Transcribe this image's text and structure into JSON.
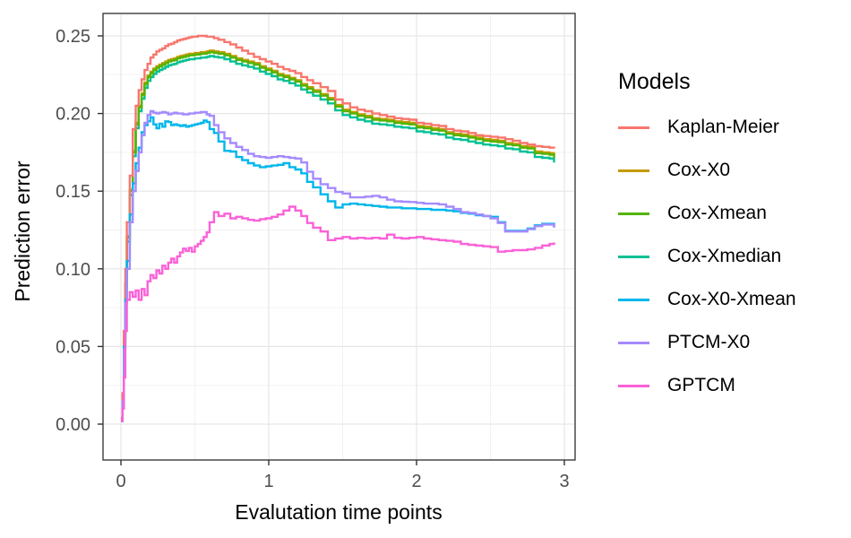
{
  "chart_data": {
    "type": "line",
    "line_style": "step",
    "title": "",
    "xlabel": "Evalutation time points",
    "ylabel": "Prediction error",
    "legend_title": "Models",
    "legend_position": "right",
    "grid": true,
    "xlim": [
      -0.12,
      3.07
    ],
    "ylim": [
      -0.022,
      0.2645
    ],
    "x_ticks": [
      0,
      1,
      2,
      3
    ],
    "x_tick_labels": [
      "0",
      "1",
      "2",
      "3"
    ],
    "y_ticks": [
      0.0,
      0.05,
      0.1,
      0.15,
      0.2,
      0.25
    ],
    "y_tick_labels": [
      "0.00",
      "0.05",
      "0.10",
      "0.15",
      "0.20",
      "0.25"
    ],
    "x_minor_ticks": [
      0.5,
      1.5,
      2.5
    ],
    "y_minor_ticks": [
      0.025,
      0.075,
      0.125,
      0.175,
      0.225
    ],
    "x": [
      0,
      0.01,
      0.02,
      0.03,
      0.04,
      0.06,
      0.08,
      0.1,
      0.12,
      0.14,
      0.16,
      0.18,
      0.2,
      0.22,
      0.24,
      0.26,
      0.28,
      0.3,
      0.32,
      0.34,
      0.36,
      0.38,
      0.4,
      0.42,
      0.44,
      0.46,
      0.48,
      0.5,
      0.52,
      0.54,
      0.56,
      0.58,
      0.6,
      0.63,
      0.66,
      0.7,
      0.74,
      0.78,
      0.82,
      0.86,
      0.9,
      0.94,
      0.98,
      1.02,
      1.06,
      1.1,
      1.14,
      1.18,
      1.22,
      1.26,
      1.3,
      1.35,
      1.4,
      1.45,
      1.5,
      1.55,
      1.6,
      1.65,
      1.7,
      1.75,
      1.8,
      1.85,
      1.9,
      1.95,
      2.0,
      2.05,
      2.1,
      2.15,
      2.2,
      2.25,
      2.3,
      2.35,
      2.4,
      2.45,
      2.5,
      2.55,
      2.6,
      2.65,
      2.7,
      2.75,
      2.8,
      2.85,
      2.9,
      2.93
    ],
    "draw_order": [
      1,
      3,
      2,
      0,
      4,
      5,
      6
    ],
    "series": [
      {
        "name": "Kaplan-Meier",
        "color": "#F8766D",
        "values": [
          0.003,
          0.02,
          0.06,
          0.1,
          0.13,
          0.16,
          0.19,
          0.205,
          0.215,
          0.222,
          0.228,
          0.232,
          0.236,
          0.238,
          0.24,
          0.241,
          0.242,
          0.2435,
          0.2445,
          0.245,
          0.246,
          0.247,
          0.2475,
          0.248,
          0.2485,
          0.249,
          0.2495,
          0.2495,
          0.25,
          0.25,
          0.25,
          0.2495,
          0.2495,
          0.2485,
          0.2475,
          0.246,
          0.2445,
          0.2425,
          0.2405,
          0.2385,
          0.2365,
          0.235,
          0.2335,
          0.232,
          0.23,
          0.2285,
          0.2275,
          0.226,
          0.2235,
          0.2215,
          0.2195,
          0.217,
          0.2145,
          0.209,
          0.2065,
          0.204,
          0.2025,
          0.2015,
          0.2,
          0.199,
          0.198,
          0.197,
          0.1965,
          0.196,
          0.194,
          0.1935,
          0.1925,
          0.192,
          0.19,
          0.189,
          0.1885,
          0.1875,
          0.186,
          0.1855,
          0.185,
          0.1845,
          0.1835,
          0.1825,
          0.181,
          0.18,
          0.179,
          0.1785,
          0.178,
          0.1775
        ]
      },
      {
        "name": "Cox-X0",
        "color": "#C49A00",
        "values": [
          0.004,
          0.019,
          0.056,
          0.091,
          0.121,
          0.151,
          0.176,
          0.194,
          0.205,
          0.213,
          0.22,
          0.2245,
          0.227,
          0.229,
          0.2305,
          0.2315,
          0.2325,
          0.2335,
          0.2345,
          0.235,
          0.2355,
          0.2365,
          0.237,
          0.2375,
          0.238,
          0.2385,
          0.2385,
          0.239,
          0.239,
          0.2395,
          0.2395,
          0.24,
          0.2405,
          0.24,
          0.2395,
          0.2385,
          0.237,
          0.2355,
          0.2345,
          0.2335,
          0.2325,
          0.2305,
          0.229,
          0.2275,
          0.2255,
          0.2245,
          0.223,
          0.2215,
          0.219,
          0.217,
          0.215,
          0.2125,
          0.21,
          0.2055,
          0.2025,
          0.201,
          0.1995,
          0.1985,
          0.197,
          0.1965,
          0.196,
          0.195,
          0.1945,
          0.194,
          0.192,
          0.1915,
          0.1905,
          0.19,
          0.188,
          0.187,
          0.1865,
          0.1855,
          0.1845,
          0.1835,
          0.183,
          0.1825,
          0.181,
          0.1805,
          0.179,
          0.1785,
          0.1755,
          0.175,
          0.1745,
          0.1725
        ]
      },
      {
        "name": "Cox-Xmean",
        "color": "#53B400",
        "values": [
          0.003,
          0.018,
          0.055,
          0.09,
          0.12,
          0.15,
          0.175,
          0.193,
          0.204,
          0.212,
          0.219,
          0.2235,
          0.226,
          0.228,
          0.2295,
          0.2305,
          0.2315,
          0.2325,
          0.2335,
          0.234,
          0.2345,
          0.2355,
          0.236,
          0.2365,
          0.237,
          0.2375,
          0.2375,
          0.238,
          0.238,
          0.2385,
          0.2385,
          0.239,
          0.2395,
          0.239,
          0.2385,
          0.2375,
          0.236,
          0.2345,
          0.2335,
          0.2325,
          0.2315,
          0.2295,
          0.228,
          0.2265,
          0.2245,
          0.2235,
          0.222,
          0.2205,
          0.218,
          0.216,
          0.214,
          0.2115,
          0.209,
          0.2045,
          0.2015,
          0.2,
          0.1985,
          0.1975,
          0.196,
          0.1955,
          0.195,
          0.194,
          0.1935,
          0.193,
          0.191,
          0.1905,
          0.1895,
          0.189,
          0.187,
          0.186,
          0.1855,
          0.1845,
          0.1835,
          0.1825,
          0.182,
          0.1815,
          0.18,
          0.1795,
          0.178,
          0.1775,
          0.1745,
          0.174,
          0.1735,
          0.1715
        ]
      },
      {
        "name": "Cox-Xmedian",
        "color": "#00C094",
        "values": [
          0.002,
          0.0155,
          0.0525,
          0.0875,
          0.1175,
          0.1475,
          0.1725,
          0.1905,
          0.2015,
          0.2095,
          0.2165,
          0.221,
          0.2235,
          0.2255,
          0.227,
          0.228,
          0.229,
          0.23,
          0.231,
          0.2315,
          0.232,
          0.233,
          0.2335,
          0.234,
          0.2345,
          0.235,
          0.235,
          0.2355,
          0.2355,
          0.236,
          0.236,
          0.2365,
          0.237,
          0.2365,
          0.236,
          0.235,
          0.2335,
          0.232,
          0.231,
          0.23,
          0.229,
          0.227,
          0.2255,
          0.224,
          0.222,
          0.221,
          0.2195,
          0.218,
          0.2155,
          0.2135,
          0.2115,
          0.209,
          0.2065,
          0.202,
          0.199,
          0.1975,
          0.196,
          0.195,
          0.1935,
          0.193,
          0.1925,
          0.1915,
          0.191,
          0.1905,
          0.1885,
          0.188,
          0.187,
          0.1865,
          0.1845,
          0.1835,
          0.183,
          0.182,
          0.181,
          0.18,
          0.1795,
          0.179,
          0.1775,
          0.177,
          0.1755,
          0.175,
          0.172,
          0.1715,
          0.171,
          0.1685
        ]
      },
      {
        "name": "Cox-X0-Xmean",
        "color": "#00B6EB",
        "values": [
          0.002,
          0.015,
          0.05,
          0.08,
          0.105,
          0.135,
          0.155,
          0.168,
          0.178,
          0.188,
          0.1925,
          0.195,
          0.1975,
          0.193,
          0.1905,
          0.1935,
          0.1915,
          0.195,
          0.1945,
          0.1925,
          0.193,
          0.1925,
          0.192,
          0.1925,
          0.1915,
          0.192,
          0.1925,
          0.193,
          0.1935,
          0.194,
          0.1955,
          0.1945,
          0.19,
          0.1875,
          0.182,
          0.176,
          0.1755,
          0.172,
          0.17,
          0.168,
          0.1665,
          0.1655,
          0.166,
          0.1665,
          0.167,
          0.168,
          0.1655,
          0.164,
          0.1615,
          0.156,
          0.1525,
          0.148,
          0.1435,
          0.1395,
          0.1415,
          0.142,
          0.1415,
          0.141,
          0.1405,
          0.14,
          0.1395,
          0.1395,
          0.139,
          0.139,
          0.1385,
          0.1385,
          0.138,
          0.138,
          0.1375,
          0.137,
          0.136,
          0.1355,
          0.1345,
          0.134,
          0.1335,
          0.13,
          0.1245,
          0.1245,
          0.1245,
          0.126,
          0.128,
          0.129,
          0.129,
          0.127
        ]
      },
      {
        "name": "PTCM-X0",
        "color": "#A58AFF",
        "values": [
          0.002,
          0.015,
          0.048,
          0.078,
          0.1,
          0.13,
          0.15,
          0.163,
          0.175,
          0.186,
          0.194,
          0.199,
          0.2015,
          0.2005,
          0.2,
          0.2005,
          0.201,
          0.2005,
          0.1995,
          0.2,
          0.2005,
          0.2,
          0.2,
          0.1995,
          0.1995,
          0.2,
          0.2,
          0.2005,
          0.2005,
          0.201,
          0.201,
          0.1995,
          0.1985,
          0.1925,
          0.188,
          0.184,
          0.181,
          0.1785,
          0.1765,
          0.174,
          0.1725,
          0.172,
          0.1715,
          0.172,
          0.1725,
          0.172,
          0.1715,
          0.171,
          0.1685,
          0.1625,
          0.158,
          0.1545,
          0.152,
          0.1495,
          0.1485,
          0.146,
          0.146,
          0.1465,
          0.147,
          0.146,
          0.1445,
          0.1435,
          0.1432,
          0.143,
          0.1425,
          0.142,
          0.142,
          0.1415,
          0.14,
          0.1385,
          0.1365,
          0.136,
          0.135,
          0.134,
          0.1325,
          0.1295,
          0.124,
          0.124,
          0.124,
          0.1255,
          0.1275,
          0.1285,
          0.1285,
          0.1265
        ]
      },
      {
        "name": "GPTCM",
        "color": "#FB61D7",
        "values": [
          0.002,
          0.01,
          0.03,
          0.06,
          0.08,
          0.085,
          0.082,
          0.086,
          0.08,
          0.087,
          0.083,
          0.092,
          0.096,
          0.094,
          0.099,
          0.097,
          0.102,
          0.1,
          0.104,
          0.1065,
          0.104,
          0.108,
          0.1105,
          0.113,
          0.1115,
          0.1135,
          0.111,
          0.1145,
          0.116,
          0.118,
          0.1205,
          0.1235,
          0.13,
          0.1365,
          0.134,
          0.1355,
          0.1325,
          0.1335,
          0.1325,
          0.1315,
          0.131,
          0.132,
          0.1325,
          0.1335,
          0.135,
          0.1375,
          0.14,
          0.1375,
          0.134,
          0.1295,
          0.1265,
          0.124,
          0.1185,
          0.1195,
          0.1205,
          0.1195,
          0.12,
          0.1195,
          0.12,
          0.1195,
          0.122,
          0.12,
          0.1195,
          0.12,
          0.1205,
          0.1195,
          0.119,
          0.1185,
          0.118,
          0.1175,
          0.116,
          0.1155,
          0.115,
          0.1145,
          0.114,
          0.111,
          0.1115,
          0.112,
          0.112,
          0.1125,
          0.1135,
          0.115,
          0.116,
          0.117
        ]
      }
    ]
  }
}
